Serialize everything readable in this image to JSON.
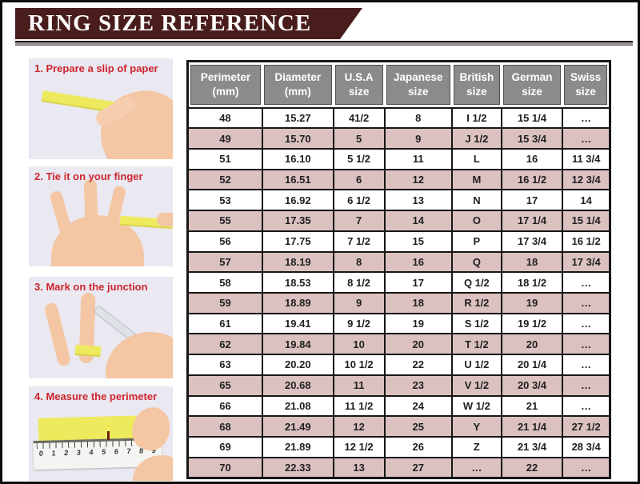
{
  "banner": {
    "title": "RING SIZE REFERENCE"
  },
  "steps": [
    {
      "label": "1. Prepare a slip of paper"
    },
    {
      "label": "2. Tie it on your finger"
    },
    {
      "label": "3. Mark on the junction"
    },
    {
      "label": "4. Measure the perimeter"
    }
  ],
  "ruler": {
    "numbers": [
      "0",
      "1",
      "2",
      "3",
      "4",
      "5",
      "6",
      "7",
      "8",
      "9"
    ]
  },
  "chart_data": {
    "type": "table",
    "title": "RING SIZE REFERENCE",
    "columns": [
      {
        "line1": "Perimeter",
        "line2": "(mm)"
      },
      {
        "line1": "Diameter",
        "line2": "(mm)"
      },
      {
        "line1": "U.S.A",
        "line2": "size"
      },
      {
        "line1": "Japanese",
        "line2": "size"
      },
      {
        "line1": "British",
        "line2": "size"
      },
      {
        "line1": "German",
        "line2": "size"
      },
      {
        "line1": "Swiss",
        "line2": "size"
      }
    ],
    "rows": [
      [
        "48",
        "15.27",
        "41/2",
        "8",
        "I 1/2",
        "15 1/4",
        "…"
      ],
      [
        "49",
        "15.70",
        "5",
        "9",
        "J 1/2",
        "15 3/4",
        "…"
      ],
      [
        "51",
        "16.10",
        "5 1/2",
        "11",
        "L",
        "16",
        "11 3/4"
      ],
      [
        "52",
        "16.51",
        "6",
        "12",
        "M",
        "16 1/2",
        "12 3/4"
      ],
      [
        "53",
        "16.92",
        "6 1/2",
        "13",
        "N",
        "17",
        "14"
      ],
      [
        "55",
        "17.35",
        "7",
        "14",
        "O",
        "17 1/4",
        "15 1/4"
      ],
      [
        "56",
        "17.75",
        "7 1/2",
        "15",
        "P",
        "17 3/4",
        "16 1/2"
      ],
      [
        "57",
        "18.19",
        "8",
        "16",
        "Q",
        "18",
        "17 3/4"
      ],
      [
        "58",
        "18.53",
        "8 1/2",
        "17",
        "Q 1/2",
        "18 1/2",
        "…"
      ],
      [
        "59",
        "18.89",
        "9",
        "18",
        "R 1/2",
        "19",
        "…"
      ],
      [
        "61",
        "19.41",
        "9 1/2",
        "19",
        "S 1/2",
        "19 1/2",
        "…"
      ],
      [
        "62",
        "19.84",
        "10",
        "20",
        "T 1/2",
        "20",
        "…"
      ],
      [
        "63",
        "20.20",
        "10 1/2",
        "22",
        "U 1/2",
        "20 1/4",
        "…"
      ],
      [
        "65",
        "20.68",
        "11",
        "23",
        "V 1/2",
        "20 3/4",
        "…"
      ],
      [
        "66",
        "21.08",
        "11 1/2",
        "24",
        "W 1/2",
        "21",
        "…"
      ],
      [
        "68",
        "21.49",
        "12",
        "25",
        "Y",
        "21 1/4",
        "27 1/2"
      ],
      [
        "69",
        "21.89",
        "12 1/2",
        "26",
        "Z",
        "21 3/4",
        "28 3/4"
      ],
      [
        "70",
        "22.33",
        "13",
        "27",
        "…",
        "22",
        "…"
      ]
    ]
  },
  "colors": {
    "banner_bg": "#4a1d1d",
    "header_bg": "#8b8b8b",
    "row_pink": "#dcc1c1",
    "step_label": "#ce2630",
    "photo_bg": "#eae8f0",
    "accent_yellow": "#eeea5e",
    "skin": "#f4c6a4"
  }
}
